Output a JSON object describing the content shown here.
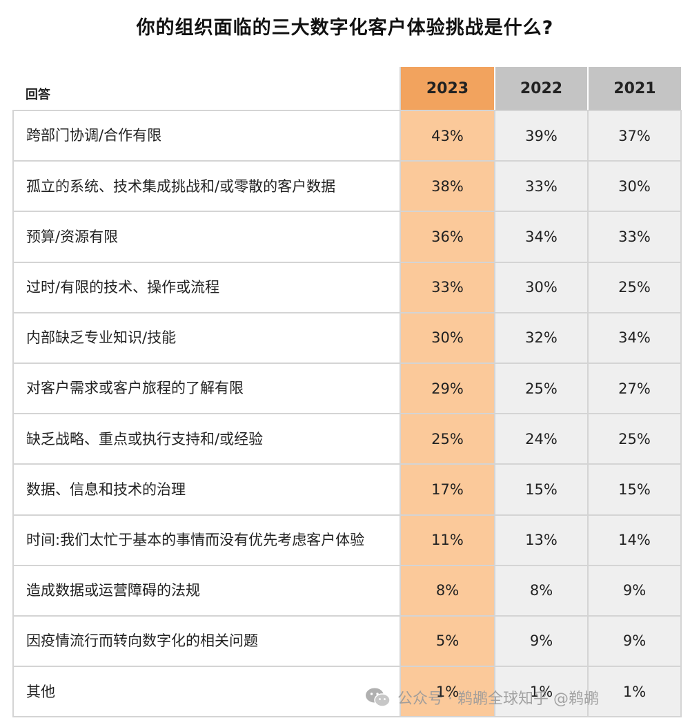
{
  "title": "你的组织面临的三大数字化客户体验挑战是什么?",
  "header": {
    "label": "回答",
    "years": [
      "2023",
      "2022",
      "2021"
    ]
  },
  "rows": [
    {
      "label": "跨部门协调/合作有限",
      "v2023": "43%",
      "v2022": "39%",
      "v2021": "37%"
    },
    {
      "label": "孤立的系统、技术集成挑战和/或零散的客户数据",
      "v2023": "38%",
      "v2022": "33%",
      "v2021": "30%"
    },
    {
      "label": "预算/资源有限",
      "v2023": "36%",
      "v2022": "34%",
      "v2021": "33%"
    },
    {
      "label": "过时/有限的技术、操作或流程",
      "v2023": "33%",
      "v2022": "30%",
      "v2021": "25%"
    },
    {
      "label": "内部缺乏专业知识/技能",
      "v2023": "30%",
      "v2022": "32%",
      "v2021": "34%"
    },
    {
      "label": "对客户需求或客户旅程的了解有限",
      "v2023": "29%",
      "v2022": "25%",
      "v2021": "27%"
    },
    {
      "label": "缺乏战略、重点或执行支持和/或经验",
      "v2023": "25%",
      "v2022": "24%",
      "v2021": "25%"
    },
    {
      "label": "数据、信息和技术的治理",
      "v2023": "17%",
      "v2022": "15%",
      "v2021": "15%"
    },
    {
      "label": "时间:我们太忙于基本的事情而没有优先考虑客户体验",
      "v2023": "11%",
      "v2022": "13%",
      "v2021": "14%"
    },
    {
      "label": "造成数据或运营障碍的法规",
      "v2023": "8%",
      "v2022": "8%",
      "v2021": "9%"
    },
    {
      "label": "因疫情流行而转向数字化的相关问题",
      "v2023": "5%",
      "v2022": "9%",
      "v2021": "9%"
    },
    {
      "label": "其他",
      "v2023": "1%",
      "v2022": "1%",
      "v2021": "1%"
    }
  ],
  "watermark": {
    "text": "公众号 · 鹈鹕全球知乎 @鹈鹕",
    "icon": "wechat-logo-icon"
  },
  "colors": {
    "header_2023": "#f2a35e",
    "cell_2023": "#fbc99a",
    "header_other": "#c4c4c4",
    "cell_other": "#efefef"
  },
  "chart_data": {
    "type": "table",
    "title": "你的组织面临的三大数字化客户体验挑战是什么?",
    "columns": [
      "回答",
      "2023",
      "2022",
      "2021"
    ],
    "categories": [
      "跨部门协调/合作有限",
      "孤立的系统、技术集成挑战和/或零散的客户数据",
      "预算/资源有限",
      "过时/有限的技术、操作或流程",
      "内部缺乏专业知识/技能",
      "对客户需求或客户旅程的了解有限",
      "缺乏战略、重点或执行支持和/或经验",
      "数据、信息和技术的治理",
      "时间:我们太忙于基本的事情而没有优先考虑客户体验",
      "造成数据或运营障碍的法规",
      "因疫情流行而转向数字化的相关问题",
      "其他"
    ],
    "series": [
      {
        "name": "2023",
        "values": [
          43,
          38,
          36,
          33,
          30,
          29,
          25,
          17,
          11,
          8,
          5,
          1
        ]
      },
      {
        "name": "2022",
        "values": [
          39,
          33,
          34,
          30,
          32,
          25,
          24,
          15,
          13,
          8,
          9,
          1
        ]
      },
      {
        "name": "2021",
        "values": [
          37,
          30,
          33,
          25,
          34,
          27,
          25,
          15,
          14,
          9,
          9,
          1
        ]
      }
    ],
    "unit": "%"
  }
}
